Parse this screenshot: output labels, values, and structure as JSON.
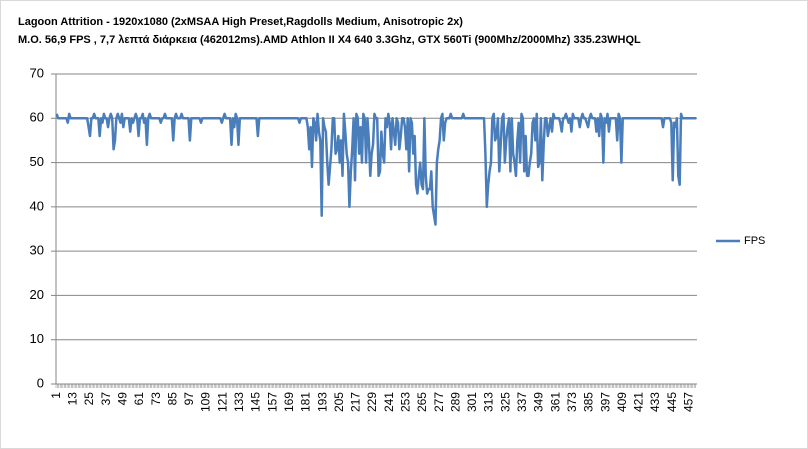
{
  "chart_data": {
    "type": "line",
    "title": "Lagoon Attrition - 1920x1080 (2xMSAA High Preset,Ragdolls Medium, Anisotropic 2x)",
    "subtitle": "M.O. 56,9 FPS , 7,7 λεπτά διάρκεια (462012ms).AMD Athlon II X4 640 3.3Ghz, GTX 560Ti (900Mhz/2000Mhz) 335.23WHQL",
    "categories": [
      "1",
      null,
      null,
      null,
      null,
      null,
      null,
      null,
      null,
      null,
      null,
      null,
      "13",
      null,
      null,
      null,
      null,
      null,
      null,
      null,
      null,
      null,
      null,
      null,
      "25",
      null,
      null,
      null,
      null,
      null,
      null,
      null,
      null,
      null,
      null,
      null,
      "37",
      null,
      null,
      null,
      null,
      null,
      null,
      null,
      null,
      null,
      null,
      null,
      "49",
      null,
      null,
      null,
      null,
      null,
      null,
      null,
      null,
      null,
      null,
      null,
      "61",
      null,
      null,
      null,
      null,
      null,
      null,
      null,
      null,
      null,
      null,
      null,
      "73",
      null,
      null,
      null,
      null,
      null,
      null,
      null,
      null,
      null,
      null,
      null,
      "85",
      null,
      null,
      null,
      null,
      null,
      null,
      null,
      null,
      null,
      null,
      null,
      "97",
      null,
      null,
      null,
      null,
      null,
      null,
      null,
      null,
      null,
      null,
      null,
      "109",
      null,
      null,
      null,
      null,
      null,
      null,
      null,
      null,
      null,
      null,
      null,
      "121",
      null,
      null,
      null,
      null,
      null,
      null,
      null,
      null,
      null,
      null,
      null,
      "133",
      null,
      null,
      null,
      null,
      null,
      null,
      null,
      null,
      null,
      null,
      null,
      "145",
      null,
      null,
      null,
      null,
      null,
      null,
      null,
      null,
      null,
      null,
      null,
      "157",
      null,
      null,
      null,
      null,
      null,
      null,
      null,
      null,
      null,
      null,
      null,
      "169",
      null,
      null,
      null,
      null,
      null,
      null,
      null,
      null,
      null,
      null,
      null,
      "181",
      null,
      null,
      null,
      null,
      null,
      null,
      null,
      null,
      null,
      null,
      null,
      "193",
      null,
      null,
      null,
      null,
      null,
      null,
      null,
      null,
      null,
      null,
      null,
      "205",
      null,
      null,
      null,
      null,
      null,
      null,
      null,
      null,
      null,
      null,
      null,
      "217",
      null,
      null,
      null,
      null,
      null,
      null,
      null,
      null,
      null,
      null,
      null,
      "229",
      null,
      null,
      null,
      null,
      null,
      null,
      null,
      null,
      null,
      null,
      null,
      "241",
      null,
      null,
      null,
      null,
      null,
      null,
      null,
      null,
      null,
      null,
      null,
      "253",
      null,
      null,
      null,
      null,
      null,
      null,
      null,
      null,
      null,
      null,
      null,
      "265",
      null,
      null,
      null,
      null,
      null,
      null,
      null,
      null,
      null,
      null,
      null,
      "277",
      null,
      null,
      null,
      null,
      null,
      null,
      null,
      null,
      null,
      null,
      null,
      "289",
      null,
      null,
      null,
      null,
      null,
      null,
      null,
      null,
      null,
      null,
      null,
      "301",
      null,
      null,
      null,
      null,
      null,
      null,
      null,
      null,
      null,
      null,
      null,
      "313",
      null,
      null,
      null,
      null,
      null,
      null,
      null,
      null,
      null,
      null,
      null,
      "325",
      null,
      null,
      null,
      null,
      null,
      null,
      null,
      null,
      null,
      null,
      null,
      "337",
      null,
      null,
      null,
      null,
      null,
      null,
      null,
      null,
      null,
      null,
      null,
      "349",
      null,
      null,
      null,
      null,
      null,
      null,
      null,
      null,
      null,
      null,
      null,
      "361",
      null,
      null,
      null,
      null,
      null,
      null,
      null,
      null,
      null,
      null,
      null,
      "373",
      null,
      null,
      null,
      null,
      null,
      null,
      null,
      null,
      null,
      null,
      null,
      "385",
      null,
      null,
      null,
      null,
      null,
      null,
      null,
      null,
      null,
      null,
      null,
      "397",
      null,
      null,
      null,
      null,
      null,
      null,
      null,
      null,
      null,
      null,
      null,
      "409",
      null,
      null,
      null,
      null,
      null,
      null,
      null,
      null,
      null,
      null,
      null,
      "421",
      null,
      null,
      null,
      null,
      null,
      null,
      null,
      null,
      null,
      null,
      null,
      "433",
      null,
      null,
      null,
      null,
      null,
      null,
      null,
      null,
      null,
      null,
      null,
      "445",
      null,
      null,
      null,
      null,
      null,
      null,
      null,
      null,
      null,
      null,
      null,
      "457",
      null,
      null,
      null,
      null,
      null
    ],
    "series": [
      {
        "name": "FPS",
        "color": "#4a7ebb",
        "values": [
          61,
          60,
          60,
          60,
          60,
          60,
          60,
          60,
          59,
          61,
          60,
          60,
          60,
          60,
          60,
          60,
          60,
          60,
          60,
          60,
          60,
          60,
          60,
          58,
          56,
          60,
          60,
          61,
          60,
          60,
          60,
          56,
          60,
          59,
          61,
          60,
          60,
          58,
          60,
          61,
          60,
          53,
          55,
          60,
          61,
          60,
          59,
          61,
          58,
          60,
          60,
          60,
          60,
          57,
          60,
          59,
          60,
          61,
          60,
          56,
          60,
          60,
          61,
          59,
          60,
          54,
          60,
          61,
          60,
          60,
          60,
          60,
          60,
          60,
          60,
          59,
          60,
          60,
          61,
          60,
          60,
          60,
          60,
          60,
          55,
          60,
          61,
          60,
          60,
          60,
          61,
          60,
          60,
          60,
          60,
          60,
          55,
          60,
          60,
          60,
          60,
          60,
          60,
          60,
          59,
          60,
          60,
          60,
          60,
          60,
          60,
          60,
          60,
          60,
          60,
          60,
          60,
          60,
          60,
          59,
          60,
          61,
          60,
          60,
          60,
          60,
          54,
          60,
          58,
          61,
          60,
          54,
          60,
          60,
          60,
          60,
          60,
          60,
          60,
          60,
          60,
          60,
          60,
          60,
          60,
          56,
          60,
          60,
          60,
          60,
          60,
          60,
          60,
          60,
          60,
          60,
          60,
          60,
          60,
          60,
          60,
          60,
          60,
          60,
          60,
          60,
          60,
          60,
          60,
          60,
          60,
          60,
          60,
          60,
          60,
          59,
          60,
          60,
          60,
          60,
          60,
          58,
          53,
          58,
          49,
          60,
          59,
          55,
          61,
          57,
          55,
          38,
          60,
          58,
          57,
          50,
          45,
          49,
          53,
          60,
          60,
          52,
          53,
          56,
          50,
          55,
          47,
          61,
          57,
          52,
          50,
          40,
          48,
          53,
          60,
          46,
          61,
          60,
          52,
          58,
          50,
          61,
          60,
          50,
          60,
          55,
          47,
          52,
          54,
          61,
          60,
          60,
          47,
          48,
          57,
          52,
          50,
          60,
          58,
          61,
          59,
          53,
          60,
          57,
          54,
          60,
          59,
          53,
          56,
          60,
          60,
          58,
          53,
          60,
          48,
          60,
          59,
          52,
          56,
          45,
          43,
          47,
          50,
          45,
          44,
          60,
          47,
          43,
          44,
          44,
          48,
          40,
          38,
          36,
          50,
          53,
          55,
          60,
          61,
          55,
          59,
          60,
          60,
          60,
          61,
          60,
          60,
          60,
          60,
          60,
          60,
          60,
          60,
          61,
          60,
          60,
          60,
          60,
          60,
          60,
          60,
          60,
          60,
          60,
          60,
          60,
          60,
          60,
          60,
          52,
          40,
          45,
          48,
          50,
          60,
          61,
          55,
          56,
          60,
          48,
          54,
          60,
          61,
          50,
          55,
          58,
          60,
          48,
          60,
          52,
          50,
          47,
          55,
          59,
          50,
          61,
          60,
          48,
          56,
          47,
          47,
          50,
          52,
          59,
          60,
          55,
          61,
          49,
          50,
          60,
          46,
          54,
          60,
          60,
          56,
          58,
          60,
          57,
          61,
          60,
          60,
          60,
          60,
          59,
          57,
          60,
          60,
          61,
          60,
          59,
          60,
          57,
          61,
          60,
          60,
          60,
          60,
          58,
          60,
          61,
          60,
          60,
          59,
          58,
          60,
          61,
          60,
          60,
          60,
          57,
          60,
          56,
          61,
          60,
          50,
          60,
          59,
          61,
          57,
          60,
          60,
          60,
          60,
          60,
          55,
          61,
          60,
          50,
          60,
          60,
          60,
          60,
          60,
          60,
          60,
          60,
          60,
          60,
          60,
          60,
          60,
          60,
          60,
          60,
          60,
          60,
          60,
          60,
          60,
          60,
          60,
          60,
          60,
          60,
          60,
          60,
          60,
          58,
          60,
          60,
          60,
          60,
          60,
          59,
          46,
          59,
          58,
          60,
          47,
          45,
          61,
          60,
          60,
          60,
          60,
          60,
          60,
          60,
          60,
          60,
          60,
          60
        ]
      }
    ],
    "ylim": [
      0,
      70
    ],
    "yticks": [
      0,
      10,
      20,
      30,
      40,
      50,
      60,
      70
    ],
    "grid": true,
    "legend": "right"
  }
}
